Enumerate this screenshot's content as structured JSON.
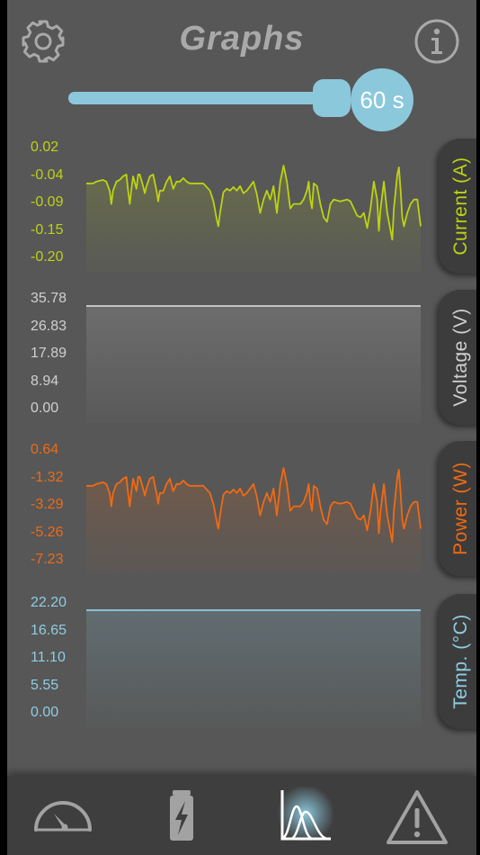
{
  "header": {
    "title": "Graphs",
    "settings_icon": "gear-icon",
    "info_icon": "info-icon"
  },
  "time_slider": {
    "value_label": "60 s",
    "fill_fraction": 0.86
  },
  "panels": [
    {
      "key": "current",
      "tab_label": "Current (A)",
      "color": "#bcd313",
      "ticks": [
        "0.02",
        "-0.04",
        "-0.09",
        "-0.15",
        "-0.20"
      ],
      "has_waveform": true
    },
    {
      "key": "voltage",
      "tab_label": "Voltage (V)",
      "color": "#d0d0d0",
      "ticks": [
        "35.78",
        "26.83",
        "17.89",
        "8.94",
        "0.00"
      ],
      "has_waveform": false
    },
    {
      "key": "power",
      "tab_label": "Power (W)",
      "color": "#f06a13",
      "ticks": [
        "0.64",
        "-1.32",
        "-3.29",
        "-5.26",
        "-7.23"
      ],
      "has_waveform": true
    },
    {
      "key": "temperature",
      "tab_label": "Temp. (°C)",
      "color": "#8ecde2",
      "ticks": [
        "22.20",
        "16.65",
        "11.10",
        "5.55",
        "0.00"
      ],
      "has_waveform": false
    }
  ],
  "nav": {
    "items": [
      {
        "name": "gauge",
        "icon": "speedometer-icon",
        "active": false
      },
      {
        "name": "battery",
        "icon": "battery-charging-icon",
        "active": false
      },
      {
        "name": "graphs",
        "icon": "graphs-icon",
        "active": true
      },
      {
        "name": "alerts",
        "icon": "warning-icon",
        "active": false
      }
    ]
  }
}
